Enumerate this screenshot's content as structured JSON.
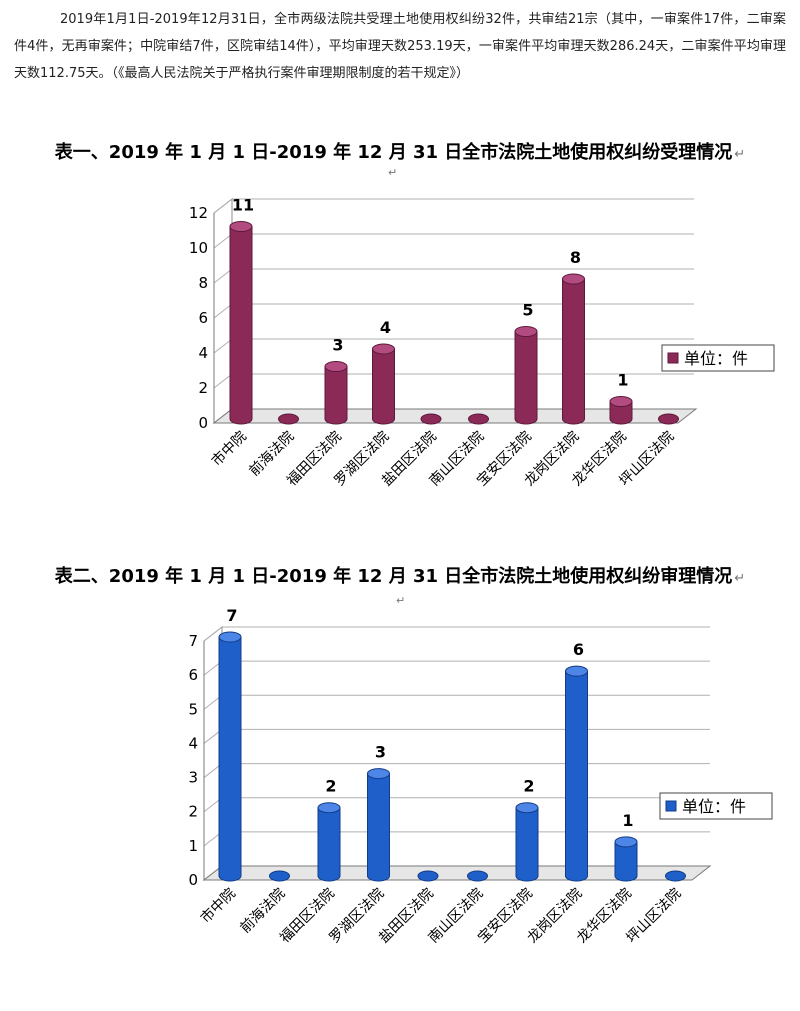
{
  "intro_text": "2019年1月1日-2019年12月31日，全市两级法院共受理土地使用权纠纷32件，共审结21宗（其中，一审案件17件，二审案件4件，无再审案件；中院审结7件，区院审结14件），平均审理天数253.19天，一审案件平均审理天数286.24天，二审案件平均审理天数112.75天。（《最高人民法院关于严格执行案件审理期限制度的若干规定》）",
  "return_mark": "↵",
  "chart1": {
    "title": "表一、2019 年 1 月 1 日-2019 年 12 月 31 日全市法院土地使用权纠纷受理情况",
    "legend": "单位：件",
    "color": "#8B2A57",
    "color_dark": "#5c1a3a",
    "color_light": "#b24b7f"
  },
  "chart2": {
    "title": "表二、2019 年 1 月 1 日-2019 年 12 月 31 日全市法院土地使用权纠纷审理情况",
    "legend": "单位：件",
    "color": "#1f5fc9",
    "color_dark": "#123c86",
    "color_light": "#4d86e6"
  },
  "chart_data": [
    {
      "type": "bar",
      "title": "表一、2019 年 1 月 1 日-2019 年 12 月 31 日全市法院土地使用权纠纷受理情况",
      "categories": [
        "市中院",
        "前海法院",
        "福田区法院",
        "罗湖区法院",
        "盐田区法院",
        "南山区法院",
        "宝安区法院",
        "龙岗区法院",
        "龙华区法院",
        "坪山区法院"
      ],
      "series": [
        {
          "name": "单位：件",
          "values": [
            11,
            0,
            3,
            4,
            0,
            0,
            5,
            8,
            1,
            0
          ]
        }
      ],
      "data_labels": [
        "11",
        "",
        "3",
        "4",
        "",
        "",
        "5",
        "8",
        "1",
        ""
      ],
      "yticks": [
        "0",
        "2",
        "4",
        "6",
        "8",
        "10",
        "12"
      ],
      "ylim": [
        0,
        12
      ],
      "grid": true,
      "legend_position": "right"
    },
    {
      "type": "bar",
      "title": "表二、2019 年 1 月 1 日-2019 年 12 月 31 日全市法院土地使用权纠纷审理情况",
      "categories": [
        "市中院",
        "前海法院",
        "福田区法院",
        "罗湖区法院",
        "盐田区法院",
        "南山区法院",
        "宝安区法院",
        "龙岗区法院",
        "龙华区法院",
        "坪山区法院"
      ],
      "series": [
        {
          "name": "单位：件",
          "values": [
            7,
            0,
            2,
            3,
            0,
            0,
            2,
            6,
            1,
            0
          ]
        }
      ],
      "data_labels": [
        "7",
        "",
        "2",
        "3",
        "",
        "",
        "2",
        "6",
        "1",
        ""
      ],
      "yticks": [
        "0",
        "1",
        "2",
        "3",
        "4",
        "5",
        "6",
        "7"
      ],
      "ylim": [
        0,
        7
      ],
      "grid": true,
      "legend_position": "right"
    }
  ]
}
